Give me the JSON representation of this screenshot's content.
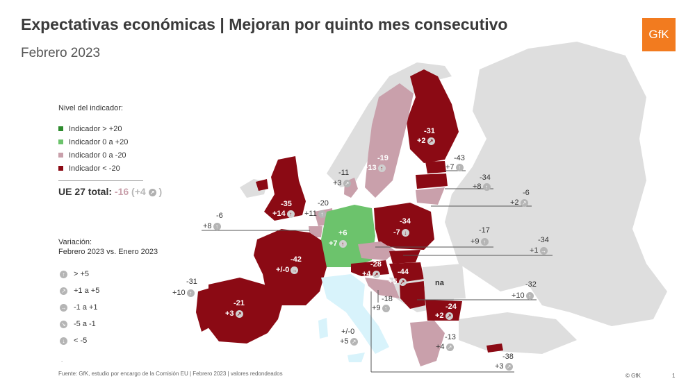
{
  "header": {
    "title": "Expectativas económicas | Mejoran por quinto mes consecutivo",
    "subtitle": "Febrero 2023",
    "logo": "GfK"
  },
  "colors": {
    "high": "#2e8b2e",
    "mid_pos": "#6cc36c",
    "mid_neg": "#c9a0ab",
    "low": "#8b0a14",
    "no_data": "#dedede",
    "italy": "#d8f3fb"
  },
  "legend": {
    "heading": "Nivel del indicador:",
    "items": [
      {
        "label": "Indicador > +20",
        "color": "#2e8b2e"
      },
      {
        "label": "Indicador 0 a +20",
        "color": "#6cc36c"
      },
      {
        "label": "Indicador 0 a -20",
        "color": "#c9a0ab"
      },
      {
        "label": "Indicador < -20",
        "color": "#8b0a14"
      }
    ]
  },
  "eu_total": {
    "label": "UE 27 total:",
    "value": "-16",
    "open": "(",
    "change": "+4",
    "icon": "arrow-up-right",
    "close": ")"
  },
  "variation": {
    "heading_line1": "Variación:",
    "heading_line2": "Febrero 2023 vs. Enero 2023",
    "items": [
      {
        "label": "> +5",
        "icon": "arrow-up"
      },
      {
        "label": "+1 a +5",
        "icon": "arrow-up-right"
      },
      {
        "label": "-1 a +1",
        "icon": "arrow-right"
      },
      {
        "label": "-5 a -1",
        "icon": "arrow-down-right"
      },
      {
        "label": "< -5",
        "icon": "arrow-down"
      }
    ]
  },
  "countries": [
    {
      "name": "Finland",
      "value": "-31",
      "change": "+2",
      "icon": "arrow-up-right"
    },
    {
      "name": "Sweden",
      "value": "-19",
      "change": "+13",
      "icon": "arrow-up"
    },
    {
      "name": "Denmark",
      "value": "-11",
      "change": "+3",
      "icon": "arrow-up-right"
    },
    {
      "name": "Estonia",
      "value": "-43",
      "change": "+7",
      "icon": "arrow-up"
    },
    {
      "name": "Latvia",
      "value": "-34",
      "change": "+8",
      "icon": "arrow-up"
    },
    {
      "name": "Lithuania",
      "value": "-6",
      "change": "+2",
      "icon": "arrow-up-right"
    },
    {
      "name": "United Kingdom",
      "value": "-35",
      "change": "+14",
      "icon": "arrow-up"
    },
    {
      "name": "Netherlands",
      "value": "-20",
      "change": "+11",
      "icon": "arrow-up"
    },
    {
      "name": "Belgium",
      "value": "-6",
      "change": "+8",
      "icon": "arrow-up"
    },
    {
      "name": "Germany",
      "value": "+6",
      "change": "+7",
      "icon": "arrow-up"
    },
    {
      "name": "Poland",
      "value": "-34",
      "change": "-7",
      "icon": "arrow-down"
    },
    {
      "name": "Czech Republic",
      "value": "-17",
      "change": "+9",
      "icon": "arrow-up"
    },
    {
      "name": "Slovakia",
      "value": "-34",
      "change": "+1",
      "icon": "arrow-right"
    },
    {
      "name": "France",
      "value": "-42",
      "change": "+/-0",
      "icon": "arrow-right"
    },
    {
      "name": "Austria",
      "value": "-28",
      "change": "+4",
      "icon": "arrow-up-right"
    },
    {
      "name": "Hungary",
      "value": "-44",
      "change": "+5",
      "icon": "arrow-up-right"
    },
    {
      "name": "Romania",
      "value": "na",
      "change": "",
      "icon": ""
    },
    {
      "name": "Portugal",
      "value": "-31",
      "change": "+10",
      "icon": "arrow-up"
    },
    {
      "name": "Spain",
      "value": "-21",
      "change": "+3",
      "icon": "arrow-up-right"
    },
    {
      "name": "Croatia",
      "value": "-18",
      "change": "+9",
      "icon": "arrow-up"
    },
    {
      "name": "Serbia",
      "value": "-32",
      "change": "+10",
      "icon": "arrow-up"
    },
    {
      "name": "Bulgaria",
      "value": "-24",
      "change": "+2",
      "icon": "arrow-up-right"
    },
    {
      "name": "Italy",
      "value": "+/-0",
      "change": "+5",
      "icon": "arrow-up-right"
    },
    {
      "name": "Greece",
      "value": "-13",
      "change": "+4",
      "icon": "arrow-up-right"
    },
    {
      "name": "Cyprus",
      "value": "-38",
      "change": "+3",
      "icon": "arrow-up-right"
    }
  ],
  "footer": {
    "source": "Fuente: GfK, estudio por encargo de la Comisión EU | Febrero 2023 | valores redondeados",
    "dot": ".",
    "copyright": "© GfK",
    "page": "1"
  }
}
